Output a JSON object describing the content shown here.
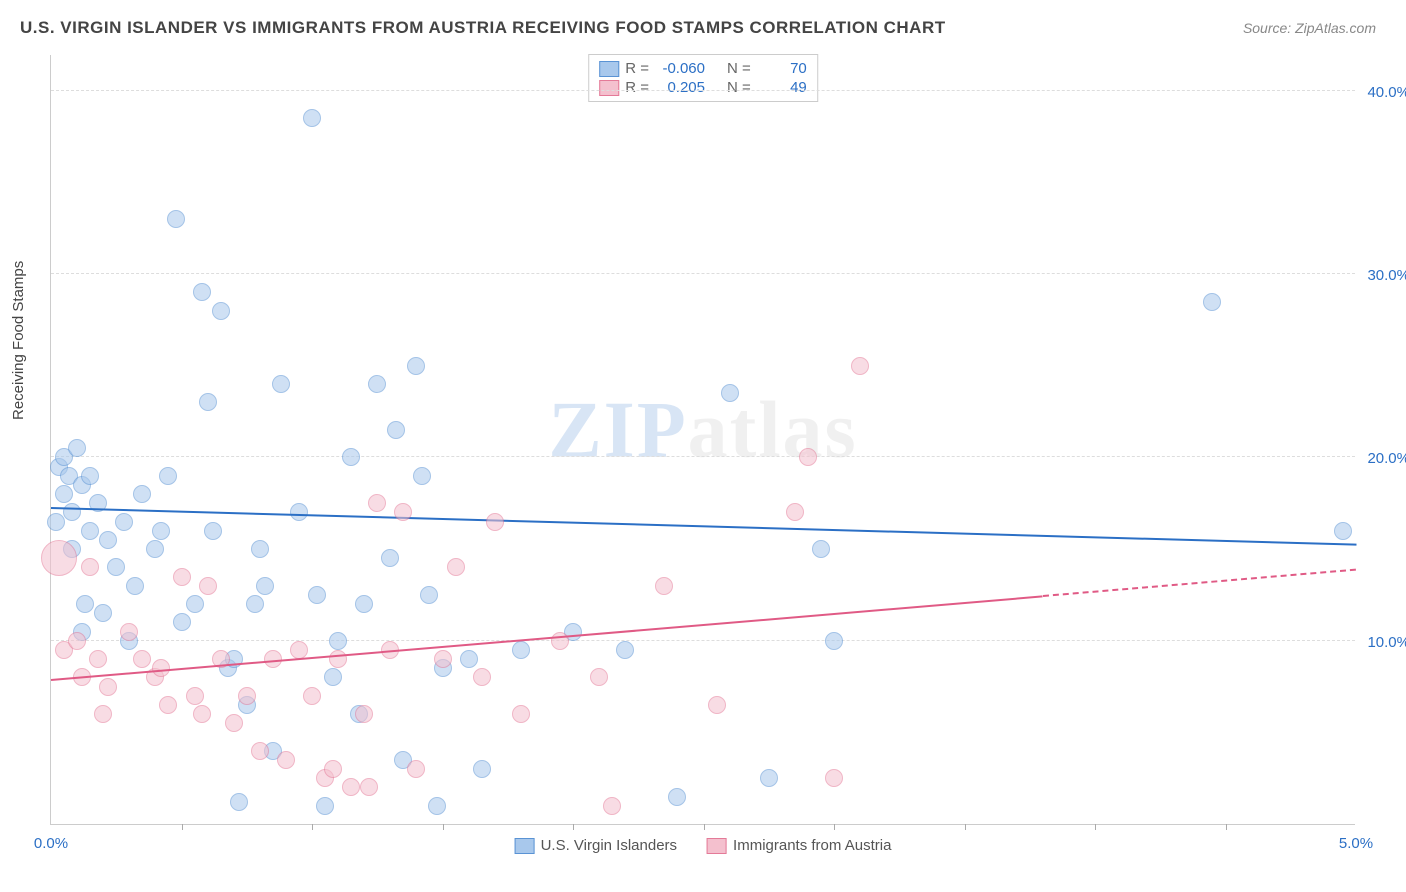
{
  "header": {
    "title": "U.S. VIRGIN ISLANDER VS IMMIGRANTS FROM AUSTRIA RECEIVING FOOD STAMPS CORRELATION CHART",
    "source": "Source: ZipAtlas.com"
  },
  "chart": {
    "type": "scatter",
    "watermark": {
      "zip": "ZIP",
      "atlas": "atlas"
    },
    "ylabel": "Receiving Food Stamps",
    "xlim": [
      0.0,
      5.0
    ],
    "ylim": [
      0.0,
      42.0
    ],
    "background_color": "#ffffff",
    "grid_color": "#dddddd",
    "yticks": [
      {
        "value": 10.0,
        "label": "10.0%"
      },
      {
        "value": 20.0,
        "label": "20.0%"
      },
      {
        "value": 30.0,
        "label": "30.0%"
      },
      {
        "value": 40.0,
        "label": "40.0%"
      }
    ],
    "xtick_marks": [
      0.5,
      1.0,
      1.5,
      2.0,
      2.5,
      3.0,
      3.5,
      4.0,
      4.5
    ],
    "xtick_labels": [
      {
        "value": 0.0,
        "label": "0.0%"
      },
      {
        "value": 5.0,
        "label": "5.0%"
      }
    ],
    "series": [
      {
        "name": "U.S. Virgin Islanders",
        "color_fill": "#a8c8ec",
        "color_stroke": "#5a93d4",
        "trend_color": "#2b6fc5",
        "marker_radius": 9,
        "fill_opacity": 0.55,
        "R": "-0.060",
        "N": "70",
        "trend": {
          "x1": 0.0,
          "y1": 17.2,
          "x2": 5.0,
          "y2": 15.2,
          "solid_until_x": 5.0
        },
        "points": [
          [
            0.02,
            16.5
          ],
          [
            0.03,
            19.5
          ],
          [
            0.05,
            18.0
          ],
          [
            0.05,
            20.0
          ],
          [
            0.07,
            19.0
          ],
          [
            0.08,
            15.0
          ],
          [
            0.08,
            17.0
          ],
          [
            0.1,
            20.5
          ],
          [
            0.12,
            18.5
          ],
          [
            0.12,
            10.5
          ],
          [
            0.13,
            12.0
          ],
          [
            0.15,
            16.0
          ],
          [
            0.15,
            19.0
          ],
          [
            0.18,
            17.5
          ],
          [
            0.2,
            11.5
          ],
          [
            0.22,
            15.5
          ],
          [
            0.25,
            14.0
          ],
          [
            0.28,
            16.5
          ],
          [
            0.3,
            10.0
          ],
          [
            0.32,
            13.0
          ],
          [
            0.35,
            18.0
          ],
          [
            0.4,
            15.0
          ],
          [
            0.42,
            16.0
          ],
          [
            0.45,
            19.0
          ],
          [
            0.48,
            33.0
          ],
          [
            0.5,
            11.0
          ],
          [
            0.55,
            12.0
          ],
          [
            0.58,
            29.0
          ],
          [
            0.6,
            23.0
          ],
          [
            0.62,
            16.0
          ],
          [
            0.65,
            28.0
          ],
          [
            0.68,
            8.5
          ],
          [
            0.7,
            9.0
          ],
          [
            0.72,
            1.2
          ],
          [
            0.75,
            6.5
          ],
          [
            0.78,
            12.0
          ],
          [
            0.8,
            15.0
          ],
          [
            0.82,
            13.0
          ],
          [
            0.85,
            4.0
          ],
          [
            0.88,
            24.0
          ],
          [
            0.95,
            17.0
          ],
          [
            1.0,
            38.5
          ],
          [
            1.02,
            12.5
          ],
          [
            1.05,
            1.0
          ],
          [
            1.08,
            8.0
          ],
          [
            1.1,
            10.0
          ],
          [
            1.15,
            20.0
          ],
          [
            1.18,
            6.0
          ],
          [
            1.2,
            12.0
          ],
          [
            1.25,
            24.0
          ],
          [
            1.3,
            14.5
          ],
          [
            1.32,
            21.5
          ],
          [
            1.35,
            3.5
          ],
          [
            1.4,
            25.0
          ],
          [
            1.42,
            19.0
          ],
          [
            1.45,
            12.5
          ],
          [
            1.48,
            1.0
          ],
          [
            1.5,
            8.5
          ],
          [
            1.6,
            9.0
          ],
          [
            1.65,
            3.0
          ],
          [
            1.8,
            9.5
          ],
          [
            2.0,
            10.5
          ],
          [
            2.2,
            9.5
          ],
          [
            2.4,
            1.5
          ],
          [
            2.6,
            23.5
          ],
          [
            2.75,
            2.5
          ],
          [
            2.95,
            15.0
          ],
          [
            3.0,
            10.0
          ],
          [
            4.45,
            28.5
          ],
          [
            4.95,
            16.0
          ]
        ]
      },
      {
        "name": "Immigrants from Austria",
        "color_fill": "#f4c0ce",
        "color_stroke": "#e47a98",
        "trend_color": "#e05a85",
        "marker_radius": 9,
        "fill_opacity": 0.55,
        "R": "0.205",
        "N": "49",
        "trend": {
          "x1": 0.0,
          "y1": 7.8,
          "x2": 5.0,
          "y2": 13.8,
          "solid_until_x": 3.8
        },
        "points": [
          [
            0.03,
            14.5,
            18
          ],
          [
            0.05,
            9.5
          ],
          [
            0.1,
            10.0
          ],
          [
            0.12,
            8.0
          ],
          [
            0.15,
            14.0
          ],
          [
            0.18,
            9.0
          ],
          [
            0.2,
            6.0
          ],
          [
            0.22,
            7.5
          ],
          [
            0.3,
            10.5
          ],
          [
            0.35,
            9.0
          ],
          [
            0.4,
            8.0
          ],
          [
            0.42,
            8.5
          ],
          [
            0.45,
            6.5
          ],
          [
            0.5,
            13.5
          ],
          [
            0.55,
            7.0
          ],
          [
            0.58,
            6.0
          ],
          [
            0.6,
            13.0
          ],
          [
            0.65,
            9.0
          ],
          [
            0.7,
            5.5
          ],
          [
            0.75,
            7.0
          ],
          [
            0.8,
            4.0
          ],
          [
            0.85,
            9.0
          ],
          [
            0.9,
            3.5
          ],
          [
            0.95,
            9.5
          ],
          [
            1.0,
            7.0
          ],
          [
            1.05,
            2.5
          ],
          [
            1.08,
            3.0
          ],
          [
            1.1,
            9.0
          ],
          [
            1.15,
            2.0
          ],
          [
            1.2,
            6.0
          ],
          [
            1.22,
            2.0
          ],
          [
            1.25,
            17.5
          ],
          [
            1.3,
            9.5
          ],
          [
            1.35,
            17.0
          ],
          [
            1.4,
            3.0
          ],
          [
            1.5,
            9.0
          ],
          [
            1.55,
            14.0
          ],
          [
            1.65,
            8.0
          ],
          [
            1.7,
            16.5
          ],
          [
            1.8,
            6.0
          ],
          [
            1.95,
            10.0
          ],
          [
            2.1,
            8.0
          ],
          [
            2.15,
            1.0
          ],
          [
            2.35,
            13.0
          ],
          [
            2.55,
            6.5
          ],
          [
            2.85,
            17.0
          ],
          [
            2.9,
            20.0
          ],
          [
            3.0,
            2.5
          ],
          [
            3.1,
            25.0
          ]
        ]
      }
    ],
    "legend": {
      "stat_labels": {
        "R": "R =",
        "N": "N ="
      },
      "value_color": "#2b6fc5"
    }
  }
}
